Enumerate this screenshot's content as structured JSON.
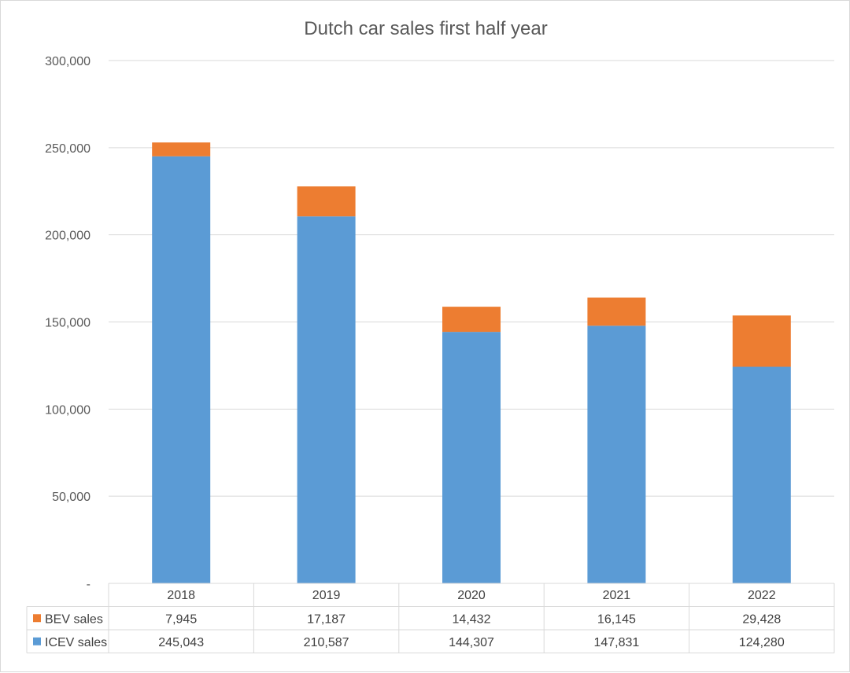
{
  "chart_data": {
    "type": "bar",
    "stacked": true,
    "title": "Dutch car sales first half year",
    "categories": [
      "2018",
      "2019",
      "2020",
      "2021",
      "2022"
    ],
    "series": [
      {
        "name": "ICEV sales",
        "values": [
          245043,
          210587,
          144307,
          147831,
          124280
        ],
        "color": "#5B9BD5"
      },
      {
        "name": "BEV sales",
        "values": [
          7945,
          17187,
          14432,
          16145,
          29428
        ],
        "color": "#ED7D31"
      }
    ],
    "data_table_rows": [
      {
        "name": "BEV sales",
        "labels": [
          "7,945",
          "17,187",
          "14,432",
          "16,145",
          "29,428"
        ],
        "color": "#ED7D31"
      },
      {
        "name": "ICEV sales",
        "labels": [
          "245,043",
          "210,587",
          "144,307",
          "147,831",
          "124,280"
        ],
        "color": "#5B9BD5"
      }
    ],
    "y_ticks": [
      "-",
      "50,000",
      "100,000",
      "150,000",
      "200,000",
      "250,000",
      "300,000"
    ],
    "ylim": [
      0,
      300000
    ],
    "xlabel": "",
    "ylabel": "",
    "grid": true,
    "legend": "data-table"
  }
}
